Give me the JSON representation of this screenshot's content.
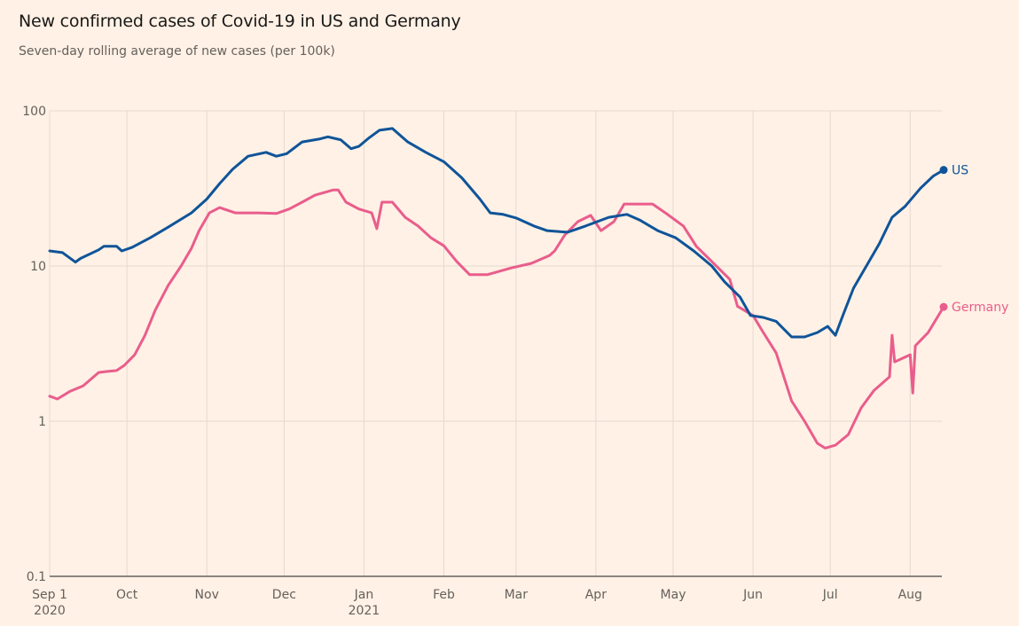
{
  "header": {
    "title": "New confirmed cases of Covid-19 in US and Germany",
    "subtitle": "Seven-day rolling average of new cases (per 100k)"
  },
  "chart_data": {
    "type": "line",
    "title": "New confirmed cases of Covid-19 in US and Germany",
    "subtitle": "Seven-day rolling average of new cases (per 100k)",
    "xlabel": "",
    "ylabel": "",
    "yscale": "log",
    "ylim": [
      0.1,
      100
    ],
    "y_ticks": [
      {
        "value": 100,
        "label": "100"
      },
      {
        "value": 10,
        "label": "10"
      },
      {
        "value": 1,
        "label": "1"
      },
      {
        "value": 0.1,
        "label": "0.1"
      }
    ],
    "x_unit": "days since 2020-09-01",
    "xlim": [
      0,
      347
    ],
    "x_ticks": [
      {
        "day": 0,
        "label": "Sep 1",
        "sublabel": "2020"
      },
      {
        "day": 30,
        "label": "Oct",
        "sublabel": ""
      },
      {
        "day": 61,
        "label": "Nov",
        "sublabel": ""
      },
      {
        "day": 91,
        "label": "Dec",
        "sublabel": ""
      },
      {
        "day": 122,
        "label": "Jan",
        "sublabel": "2021"
      },
      {
        "day": 153,
        "label": "Feb",
        "sublabel": ""
      },
      {
        "day": 181,
        "label": "Mar",
        "sublabel": ""
      },
      {
        "day": 212,
        "label": "Apr",
        "sublabel": ""
      },
      {
        "day": 242,
        "label": "May",
        "sublabel": ""
      },
      {
        "day": 273,
        "label": "Jun",
        "sublabel": ""
      },
      {
        "day": 303,
        "label": "Jul",
        "sublabel": ""
      },
      {
        "day": 334,
        "label": "Aug",
        "sublabel": ""
      }
    ],
    "grid": true,
    "legend": "direct labels at line ends (right)",
    "series": [
      {
        "name": "US",
        "color": "#0f5499",
        "points": [
          [
            0,
            12.5
          ],
          [
            5,
            12.2
          ],
          [
            10,
            10.6
          ],
          [
            12,
            11.2
          ],
          [
            19,
            12.7
          ],
          [
            21,
            13.4
          ],
          [
            26,
            13.4
          ],
          [
            28,
            12.5
          ],
          [
            32,
            13.2
          ],
          [
            39,
            15.2
          ],
          [
            46,
            17.8
          ],
          [
            55,
            22
          ],
          [
            61,
            27
          ],
          [
            66,
            34
          ],
          [
            71,
            42
          ],
          [
            77,
            51
          ],
          [
            84,
            54
          ],
          [
            88,
            51
          ],
          [
            92,
            53
          ],
          [
            98,
            63
          ],
          [
            105,
            66
          ],
          [
            108,
            68
          ],
          [
            113,
            65
          ],
          [
            117,
            57
          ],
          [
            120,
            59
          ],
          [
            124,
            67
          ],
          [
            128,
            75
          ],
          [
            133,
            77
          ],
          [
            139,
            63
          ],
          [
            146,
            54
          ],
          [
            153,
            47
          ],
          [
            160,
            37
          ],
          [
            167,
            27
          ],
          [
            171,
            22
          ],
          [
            176,
            21.5
          ],
          [
            181,
            20.4
          ],
          [
            188,
            18.1
          ],
          [
            193,
            16.9
          ],
          [
            201,
            16.5
          ],
          [
            208,
            18.1
          ],
          [
            217,
            20.6
          ],
          [
            224,
            21.5
          ],
          [
            229,
            19.8
          ],
          [
            236,
            16.9
          ],
          [
            243,
            15.2
          ],
          [
            250,
            12.5
          ],
          [
            257,
            10
          ],
          [
            262,
            7.9
          ],
          [
            268,
            6.3
          ],
          [
            272,
            4.8
          ],
          [
            277,
            4.66
          ],
          [
            282,
            4.4
          ],
          [
            288,
            3.49
          ],
          [
            293,
            3.49
          ],
          [
            298,
            3.73
          ],
          [
            302,
            4.08
          ],
          [
            305,
            3.58
          ],
          [
            308,
            4.85
          ],
          [
            312,
            7.2
          ],
          [
            317,
            10
          ],
          [
            322,
            13.9
          ],
          [
            327,
            20.6
          ],
          [
            332,
            24.2
          ],
          [
            338,
            31.7
          ],
          [
            343,
            38
          ],
          [
            347,
            41.6
          ]
        ]
      },
      {
        "name": "Germany",
        "color": "#e95d8c",
        "points": [
          [
            0,
            1.45
          ],
          [
            3,
            1.39
          ],
          [
            8,
            1.56
          ],
          [
            13,
            1.69
          ],
          [
            19,
            2.06
          ],
          [
            22,
            2.09
          ],
          [
            26,
            2.12
          ],
          [
            29,
            2.29
          ],
          [
            33,
            2.68
          ],
          [
            37,
            3.58
          ],
          [
            41,
            5.2
          ],
          [
            46,
            7.5
          ],
          [
            51,
            10
          ],
          [
            55,
            13
          ],
          [
            58,
            16.9
          ],
          [
            62,
            22
          ],
          [
            66,
            23.8
          ],
          [
            72,
            22
          ],
          [
            81,
            22
          ],
          [
            88,
            21.8
          ],
          [
            93,
            23.3
          ],
          [
            98,
            25.8
          ],
          [
            103,
            28.6
          ],
          [
            110,
            30.9
          ],
          [
            112,
            30.9
          ],
          [
            115,
            25.8
          ],
          [
            120,
            23.3
          ],
          [
            125,
            22
          ],
          [
            127,
            17.4
          ],
          [
            129,
            25.8
          ],
          [
            133,
            25.8
          ],
          [
            138,
            20.6
          ],
          [
            143,
            18.1
          ],
          [
            148,
            15.2
          ],
          [
            153,
            13.5
          ],
          [
            158,
            10.7
          ],
          [
            163,
            8.8
          ],
          [
            170,
            8.8
          ],
          [
            179,
            9.7
          ],
          [
            187,
            10.4
          ],
          [
            194,
            11.7
          ],
          [
            196,
            12.5
          ],
          [
            200,
            15.9
          ],
          [
            205,
            19.3
          ],
          [
            210,
            21.2
          ],
          [
            214,
            16.9
          ],
          [
            219,
            19.3
          ],
          [
            223,
            25.1
          ],
          [
            229,
            25.1
          ],
          [
            234,
            25.1
          ],
          [
            239,
            22
          ],
          [
            246,
            18.1
          ],
          [
            251,
            13.4
          ],
          [
            257,
            10.7
          ],
          [
            264,
            8.2
          ],
          [
            267,
            5.5
          ],
          [
            273,
            4.8
          ],
          [
            277,
            3.73
          ],
          [
            282,
            2.75
          ],
          [
            288,
            1.35
          ],
          [
            293,
            1.0
          ],
          [
            298,
            0.72
          ],
          [
            301,
            0.67
          ],
          [
            305,
            0.7
          ],
          [
            310,
            0.82
          ],
          [
            315,
            1.22
          ],
          [
            320,
            1.58
          ],
          [
            326,
            1.93
          ],
          [
            327,
            3.58
          ],
          [
            328,
            2.41
          ],
          [
            334,
            2.68
          ],
          [
            335,
            1.52
          ],
          [
            336,
            3.06
          ],
          [
            341,
            3.73
          ],
          [
            347,
            5.45
          ]
        ]
      }
    ]
  }
}
